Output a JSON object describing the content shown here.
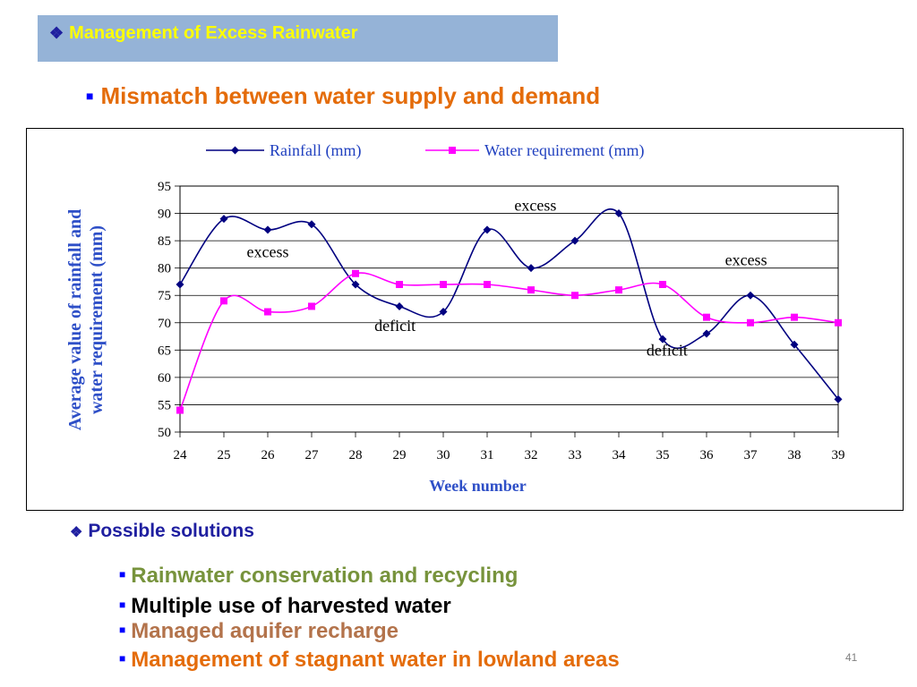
{
  "header": {
    "title": "Management of Excess Rainwater",
    "bullet_glyph": "❖"
  },
  "subtitle": {
    "text": "Mismatch between water supply and demand",
    "bullet_glyph": "■"
  },
  "chart_data": {
    "type": "line",
    "x": [
      24,
      25,
      26,
      27,
      28,
      29,
      30,
      31,
      32,
      33,
      34,
      35,
      36,
      37,
      38,
      39
    ],
    "series": [
      {
        "name": "Rainfall (mm)",
        "color": "#000080",
        "marker": "diamond",
        "values": [
          77,
          89,
          87,
          88,
          77,
          73,
          72,
          87,
          80,
          85,
          90,
          67,
          68,
          75,
          66,
          56
        ]
      },
      {
        "name": "Water requirement (mm)",
        "color": "#ff00ff",
        "marker": "square",
        "values": [
          54,
          74,
          72,
          73,
          79,
          77,
          77,
          77,
          76,
          75,
          76,
          77,
          71,
          70,
          71,
          70
        ]
      }
    ],
    "xlabel": "Week number",
    "ylabel": "Average value of rainfall and water requirement (mm)",
    "ylabel_lines": [
      "Average value of rainfall and",
      "water requirement (mm)"
    ],
    "ylim": [
      50,
      95
    ],
    "yticks": [
      50,
      55,
      60,
      65,
      70,
      75,
      80,
      85,
      90,
      95
    ],
    "grid": "horizontal",
    "legend_position": "top",
    "annotations": [
      {
        "text": "excess",
        "x": 26,
        "y": 82
      },
      {
        "text": "excess",
        "x": 32.1,
        "y": 90.5
      },
      {
        "text": "excess",
        "x": 36.9,
        "y": 80.5
      },
      {
        "text": "deficit",
        "x": 28.9,
        "y": 68.5
      },
      {
        "text": "deficit",
        "x": 35.1,
        "y": 64
      }
    ]
  },
  "solutions": {
    "title": "Possible solutions",
    "bullet_glyph": "❖",
    "item_glyph": "■",
    "items": [
      {
        "text": "Rainwater conservation and recycling",
        "color": "#77933c"
      },
      {
        "text": "Multiple use of harvested water",
        "color": "#000000"
      },
      {
        "text": "Managed aquifer recharge",
        "color": "#b3734b"
      },
      {
        "text": "Management of stagnant water in lowland areas",
        "color": "#e46c0a"
      }
    ]
  },
  "page_number": "41"
}
